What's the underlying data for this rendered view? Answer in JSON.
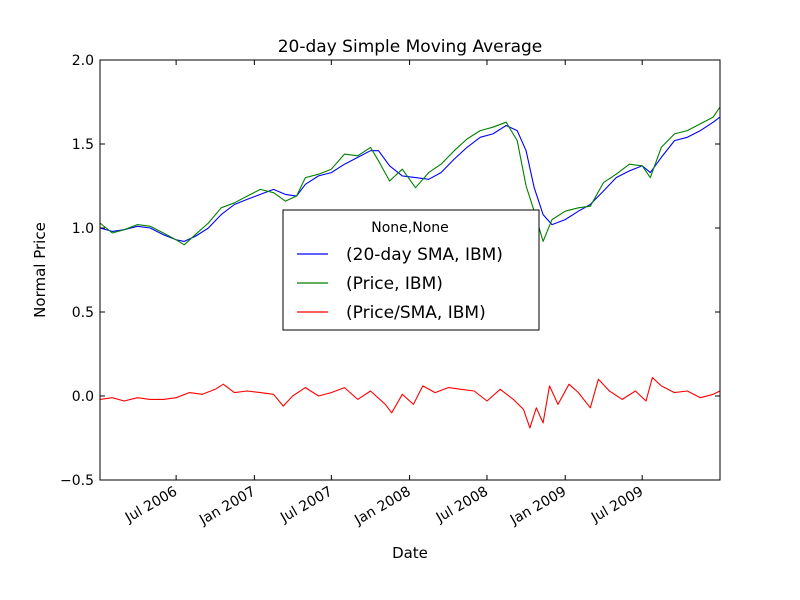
{
  "chart_data": {
    "type": "line",
    "title": "20-day Simple Moving Average",
    "xlabel": "Date",
    "ylabel": "Normal Price",
    "x_range": [
      "2006-01-03",
      "2009-12-31"
    ],
    "ylim": [
      -0.5,
      2.0
    ],
    "grid": false,
    "legend": {
      "placement": "center",
      "title": "None,None",
      "entries": [
        "(20-day SMA, IBM)",
        "(Price, IBM)",
        "(Price/SMA, IBM)"
      ]
    },
    "x_ticks": [
      {
        "date": "2006-07-01",
        "label": "Jul 2006"
      },
      {
        "date": "2007-01-01",
        "label": "Jan 2007"
      },
      {
        "date": "2007-07-01",
        "label": "Jul 2007"
      },
      {
        "date": "2008-01-01",
        "label": "Jan 2008"
      },
      {
        "date": "2008-07-01",
        "label": "Jul 2008"
      },
      {
        "date": "2009-01-01",
        "label": "Jan 2009"
      },
      {
        "date": "2009-07-01",
        "label": "Jul 2009"
      }
    ],
    "y_ticks": [
      {
        "value": 2.0,
        "label": "2.0"
      },
      {
        "value": 1.5,
        "label": "1.5"
      },
      {
        "value": 1.0,
        "label": "1.0"
      },
      {
        "value": 0.5,
        "label": "0.5"
      },
      {
        "value": 0.0,
        "label": "0.0"
      },
      {
        "value": -0.5,
        "label": "−0.5"
      }
    ],
    "series": [
      {
        "name": "(20-day SMA, IBM)",
        "color": "#0000ff",
        "points": [
          [
            "2006-01-03",
            1.0
          ],
          [
            "2006-02-01",
            0.98
          ],
          [
            "2006-03-01",
            0.99
          ],
          [
            "2006-04-01",
            1.01
          ],
          [
            "2006-05-01",
            1.0
          ],
          [
            "2006-06-01",
            0.96
          ],
          [
            "2006-07-01",
            0.93
          ],
          [
            "2006-07-20",
            0.92
          ],
          [
            "2006-08-15",
            0.95
          ],
          [
            "2006-09-15",
            1.0
          ],
          [
            "2006-10-15",
            1.08
          ],
          [
            "2006-11-15",
            1.14
          ],
          [
            "2006-12-15",
            1.17
          ],
          [
            "2007-01-15",
            1.2
          ],
          [
            "2007-02-15",
            1.23
          ],
          [
            "2007-03-15",
            1.2
          ],
          [
            "2007-04-10",
            1.19
          ],
          [
            "2007-05-01",
            1.26
          ],
          [
            "2007-06-01",
            1.31
          ],
          [
            "2007-07-01",
            1.33
          ],
          [
            "2007-08-01",
            1.38
          ],
          [
            "2007-09-01",
            1.42
          ],
          [
            "2007-10-01",
            1.46
          ],
          [
            "2007-10-20",
            1.46
          ],
          [
            "2007-11-15",
            1.37
          ],
          [
            "2007-12-15",
            1.31
          ],
          [
            "2008-01-15",
            1.3
          ],
          [
            "2008-02-15",
            1.29
          ],
          [
            "2008-03-15",
            1.33
          ],
          [
            "2008-04-15",
            1.41
          ],
          [
            "2008-05-15",
            1.48
          ],
          [
            "2008-06-15",
            1.54
          ],
          [
            "2008-07-15",
            1.56
          ],
          [
            "2008-08-15",
            1.61
          ],
          [
            "2008-09-10",
            1.58
          ],
          [
            "2008-10-01",
            1.46
          ],
          [
            "2008-10-20",
            1.24
          ],
          [
            "2008-11-10",
            1.08
          ],
          [
            "2008-12-01",
            1.02
          ],
          [
            "2009-01-01",
            1.05
          ],
          [
            "2009-02-01",
            1.1
          ],
          [
            "2009-03-01",
            1.14
          ],
          [
            "2009-04-01",
            1.22
          ],
          [
            "2009-05-01",
            1.3
          ],
          [
            "2009-06-01",
            1.34
          ],
          [
            "2009-07-01",
            1.37
          ],
          [
            "2009-07-20",
            1.33
          ],
          [
            "2009-08-15",
            1.42
          ],
          [
            "2009-09-15",
            1.52
          ],
          [
            "2009-10-15",
            1.54
          ],
          [
            "2009-11-15",
            1.58
          ],
          [
            "2009-12-15",
            1.63
          ],
          [
            "2009-12-31",
            1.66
          ]
        ]
      },
      {
        "name": "(Price, IBM)",
        "color": "#008000",
        "points": [
          [
            "2006-01-03",
            1.03
          ],
          [
            "2006-02-01",
            0.97
          ],
          [
            "2006-03-01",
            0.99
          ],
          [
            "2006-04-01",
            1.02
          ],
          [
            "2006-05-01",
            1.01
          ],
          [
            "2006-06-01",
            0.97
          ],
          [
            "2006-07-01",
            0.93
          ],
          [
            "2006-07-20",
            0.9
          ],
          [
            "2006-08-15",
            0.96
          ],
          [
            "2006-09-15",
            1.03
          ],
          [
            "2006-10-15",
            1.12
          ],
          [
            "2006-11-15",
            1.15
          ],
          [
            "2006-12-15",
            1.19
          ],
          [
            "2007-01-15",
            1.23
          ],
          [
            "2007-02-15",
            1.21
          ],
          [
            "2007-03-15",
            1.16
          ],
          [
            "2007-04-10",
            1.19
          ],
          [
            "2007-05-01",
            1.3
          ],
          [
            "2007-06-01",
            1.32
          ],
          [
            "2007-07-01",
            1.35
          ],
          [
            "2007-08-01",
            1.44
          ],
          [
            "2007-09-01",
            1.43
          ],
          [
            "2007-10-01",
            1.48
          ],
          [
            "2007-10-20",
            1.4
          ],
          [
            "2007-11-15",
            1.28
          ],
          [
            "2007-12-15",
            1.35
          ],
          [
            "2008-01-15",
            1.24
          ],
          [
            "2008-02-15",
            1.33
          ],
          [
            "2008-03-15",
            1.38
          ],
          [
            "2008-04-15",
            1.46
          ],
          [
            "2008-05-15",
            1.53
          ],
          [
            "2008-06-15",
            1.58
          ],
          [
            "2008-07-15",
            1.6
          ],
          [
            "2008-08-15",
            1.63
          ],
          [
            "2008-09-10",
            1.52
          ],
          [
            "2008-10-01",
            1.25
          ],
          [
            "2008-10-20",
            1.1
          ],
          [
            "2008-11-10",
            0.92
          ],
          [
            "2008-12-01",
            1.05
          ],
          [
            "2009-01-01",
            1.1
          ],
          [
            "2009-02-01",
            1.12
          ],
          [
            "2009-03-01",
            1.13
          ],
          [
            "2009-04-01",
            1.27
          ],
          [
            "2009-05-01",
            1.32
          ],
          [
            "2009-06-01",
            1.38
          ],
          [
            "2009-07-01",
            1.37
          ],
          [
            "2009-07-20",
            1.3
          ],
          [
            "2009-08-15",
            1.48
          ],
          [
            "2009-09-15",
            1.56
          ],
          [
            "2009-10-15",
            1.58
          ],
          [
            "2009-11-15",
            1.62
          ],
          [
            "2009-12-15",
            1.66
          ],
          [
            "2009-12-31",
            1.72
          ]
        ]
      },
      {
        "name": "(Price/SMA, IBM)",
        "color": "#ff0000",
        "points": [
          [
            "2006-01-03",
            -0.02
          ],
          [
            "2006-02-01",
            -0.01
          ],
          [
            "2006-03-01",
            -0.03
          ],
          [
            "2006-04-01",
            -0.01
          ],
          [
            "2006-05-01",
            -0.02
          ],
          [
            "2006-06-01",
            -0.02
          ],
          [
            "2006-07-01",
            -0.01
          ],
          [
            "2006-08-01",
            0.02
          ],
          [
            "2006-09-01",
            0.01
          ],
          [
            "2006-10-01",
            0.04
          ],
          [
            "2006-10-20",
            0.07
          ],
          [
            "2006-11-15",
            0.02
          ],
          [
            "2006-12-15",
            0.03
          ],
          [
            "2007-01-15",
            0.02
          ],
          [
            "2007-02-15",
            0.01
          ],
          [
            "2007-03-10",
            -0.06
          ],
          [
            "2007-04-01",
            0.0
          ],
          [
            "2007-05-01",
            0.05
          ],
          [
            "2007-06-01",
            0.0
          ],
          [
            "2007-07-01",
            0.02
          ],
          [
            "2007-08-01",
            0.05
          ],
          [
            "2007-09-01",
            -0.02
          ],
          [
            "2007-10-01",
            0.03
          ],
          [
            "2007-11-05",
            -0.05
          ],
          [
            "2007-11-20",
            -0.1
          ],
          [
            "2007-12-15",
            0.01
          ],
          [
            "2008-01-10",
            -0.05
          ],
          [
            "2008-02-01",
            0.06
          ],
          [
            "2008-03-01",
            0.02
          ],
          [
            "2008-04-01",
            0.05
          ],
          [
            "2008-05-01",
            0.04
          ],
          [
            "2008-06-01",
            0.03
          ],
          [
            "2008-07-01",
            -0.03
          ],
          [
            "2008-08-01",
            0.04
          ],
          [
            "2008-09-01",
            -0.02
          ],
          [
            "2008-09-25",
            -0.08
          ],
          [
            "2008-10-10",
            -0.19
          ],
          [
            "2008-10-25",
            -0.07
          ],
          [
            "2008-11-10",
            -0.16
          ],
          [
            "2008-11-25",
            0.06
          ],
          [
            "2008-12-15",
            -0.05
          ],
          [
            "2009-01-10",
            0.07
          ],
          [
            "2009-02-01",
            0.02
          ],
          [
            "2009-03-01",
            -0.07
          ],
          [
            "2009-03-20",
            0.1
          ],
          [
            "2009-04-15",
            0.03
          ],
          [
            "2009-05-15",
            -0.02
          ],
          [
            "2009-06-15",
            0.03
          ],
          [
            "2009-07-10",
            -0.03
          ],
          [
            "2009-07-25",
            0.11
          ],
          [
            "2009-08-15",
            0.06
          ],
          [
            "2009-09-15",
            0.02
          ],
          [
            "2009-10-15",
            0.03
          ],
          [
            "2009-11-15",
            -0.01
          ],
          [
            "2009-12-15",
            0.01
          ],
          [
            "2009-12-31",
            0.03
          ]
        ]
      }
    ]
  }
}
